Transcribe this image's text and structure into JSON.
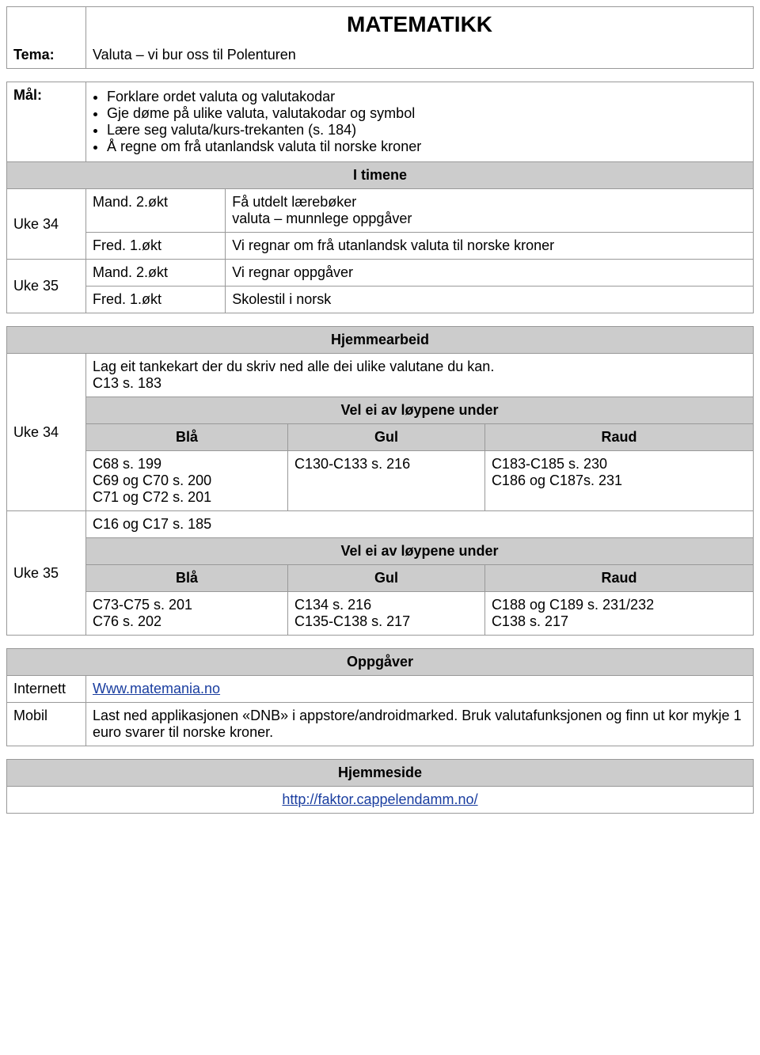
{
  "subject_title": "MATEMATIKK",
  "tema_label": "Tema:",
  "tema_text": "Valuta – vi bur oss til Polenturen",
  "maal_label": "Mål:",
  "goals": [
    "Forklare ordet valuta og valutakodar",
    "Gje døme på ulike valuta, valutakodar og symbol",
    "Lære seg valuta/kurs-trekanten (s. 184)",
    "Å regne om frå utanlandsk valuta til norske kroner"
  ],
  "itimene_header": "I timene",
  "uke34_label": "Uke 34",
  "uke35_label": "Uke 35",
  "sessions": {
    "uke34": [
      {
        "slot": "Mand. 2.økt",
        "text": "Få utdelt lærebøker\nvaluta – munnlege oppgåver"
      },
      {
        "slot": "Fred. 1.økt",
        "text": "Vi regnar om frå utanlandsk valuta til norske kroner"
      }
    ],
    "uke35": [
      {
        "slot": "Mand. 2.økt",
        "text": "Vi regnar oppgåver"
      },
      {
        "slot": "Fred. 1.økt",
        "text": "Skolestil i norsk"
      }
    ]
  },
  "hjemmearbeid_header": "Hjemmearbeid",
  "hw_uke34_intro": "Lag eit tankekart der du skriv ned alle dei ulike valutane du kan.\nC13 s. 183",
  "vel_header": "Vel ei av løypene under",
  "blaa": "Blå",
  "gul": "Gul",
  "raud": "Raud",
  "hw_uke34_blaa": "C68 s. 199\nC69 og C70 s. 200\nC71 og C72 s. 201",
  "hw_uke34_gul": "C130-C133 s. 216",
  "hw_uke34_raud": "C183-C185 s. 230\nC186 og C187s. 231",
  "hw_uke35_intro": "C16 og C17 s. 185",
  "hw_uke35_blaa": "C73-C75 s. 201\nC76 s. 202",
  "hw_uke35_gul": "C134 s. 216\nC135-C138 s. 217",
  "hw_uke35_raud": "C188 og C189 s. 231/232\nC138 s. 217",
  "oppgaver_header": "Oppgåver",
  "internett_label": "Internett",
  "internett_link": "Www.matemania.no",
  "mobil_label": "Mobil",
  "mobil_text": "Last ned applikasjonen «DNB» i appstore/androidmarked. Bruk valutafunksjonen og finn ut kor mykje 1 euro svarer til norske kroner.",
  "hjemmeside_header": "Hjemmeside",
  "hjemmeside_link": "http://faktor.cappelendamm.no/"
}
